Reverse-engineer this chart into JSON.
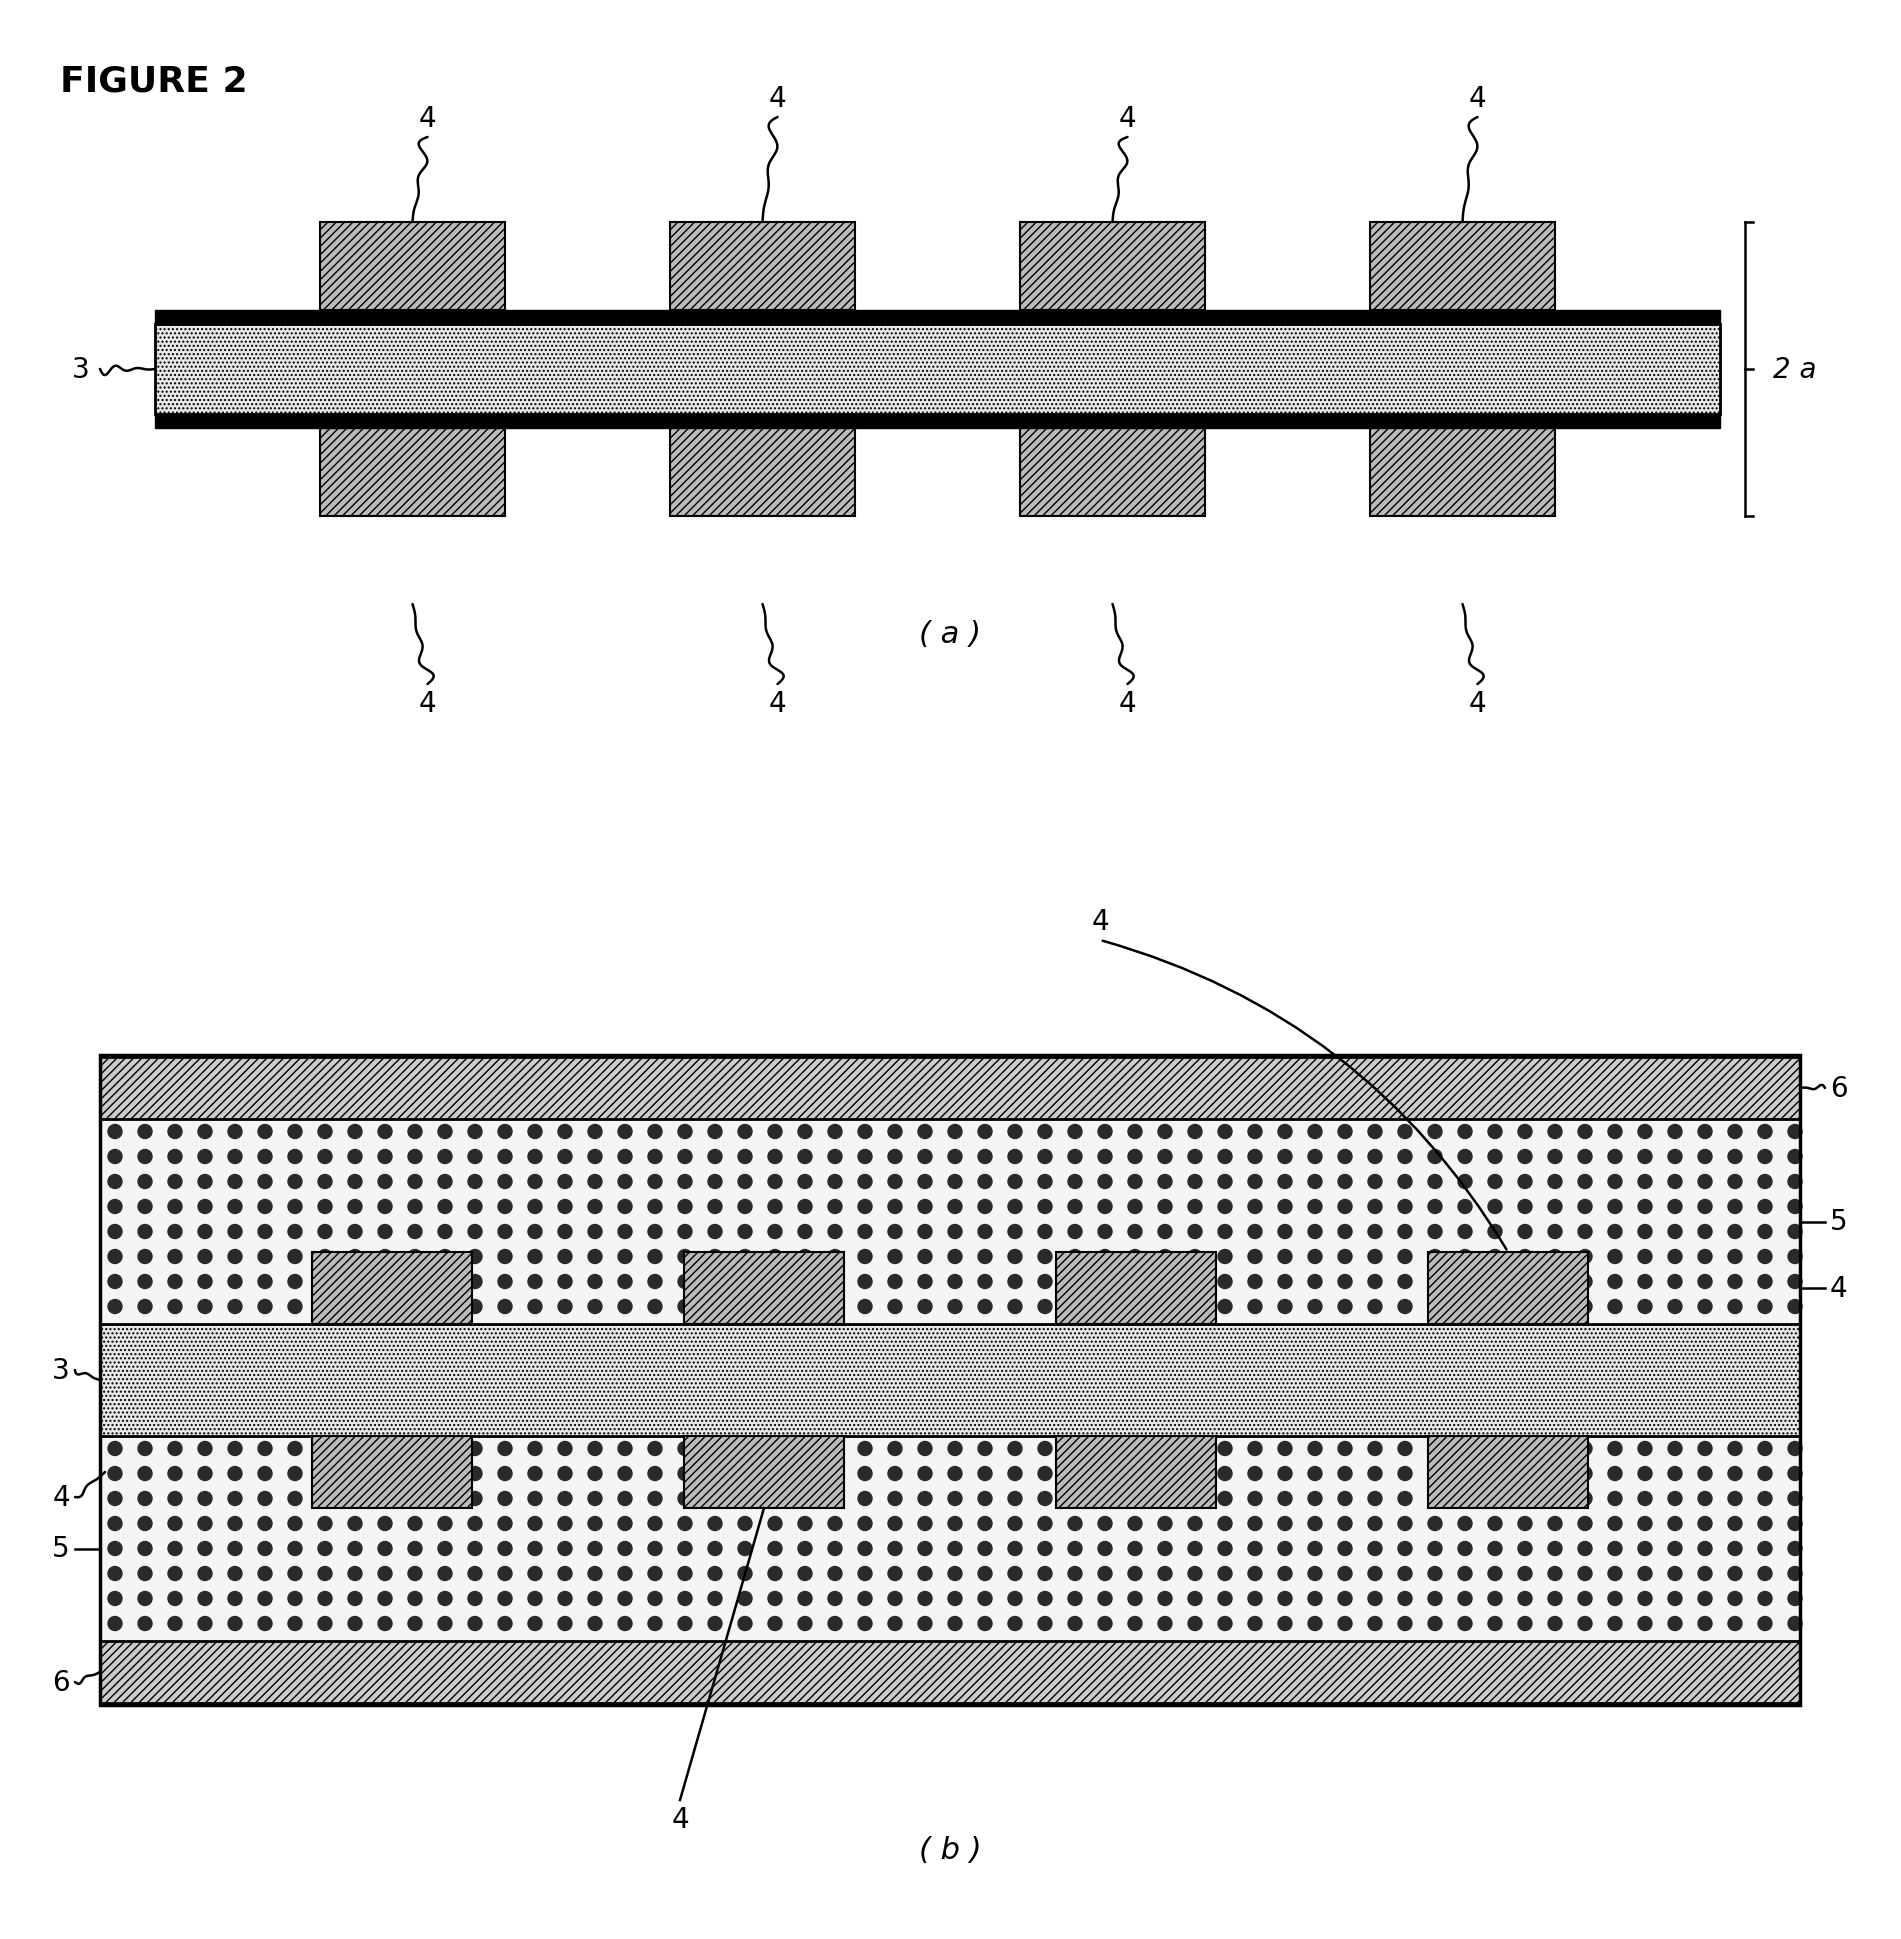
{
  "figure_title": "FIGURE 2",
  "label_a": "( a )",
  "label_b": "( b )",
  "bg_color": "#ffffff",
  "pad_hatch": "////",
  "core_hatch": "....",
  "foil_hatch": "////",
  "foil_facecolor": "#cccccc",
  "pad_facecolor": "#bbbbbb",
  "core_facecolor": "#e8e8e8",
  "prepreg_facecolor": "#f0f0f0",
  "strip_facecolor": "#000000"
}
